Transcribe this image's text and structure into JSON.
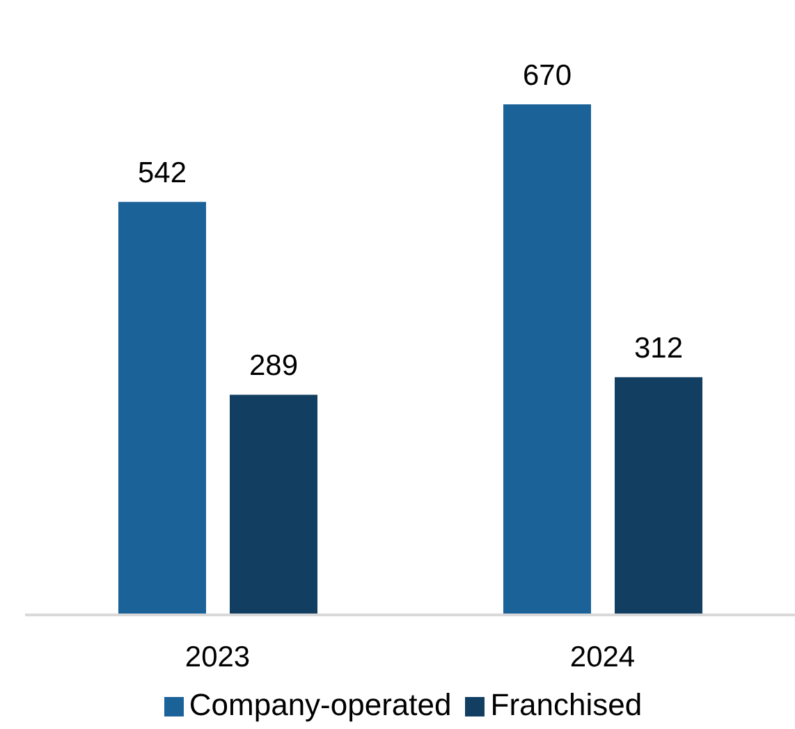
{
  "chart_data": {
    "type": "bar",
    "categories": [
      "2023",
      "2024"
    ],
    "series": [
      {
        "name": "Company-operated",
        "color": "#1b6299",
        "values": [
          542,
          670
        ]
      },
      {
        "name": "Franchised",
        "color": "#123f61",
        "values": [
          289,
          312
        ]
      }
    ],
    "data_labels": true,
    "legend": "bottom",
    "grid": false
  }
}
